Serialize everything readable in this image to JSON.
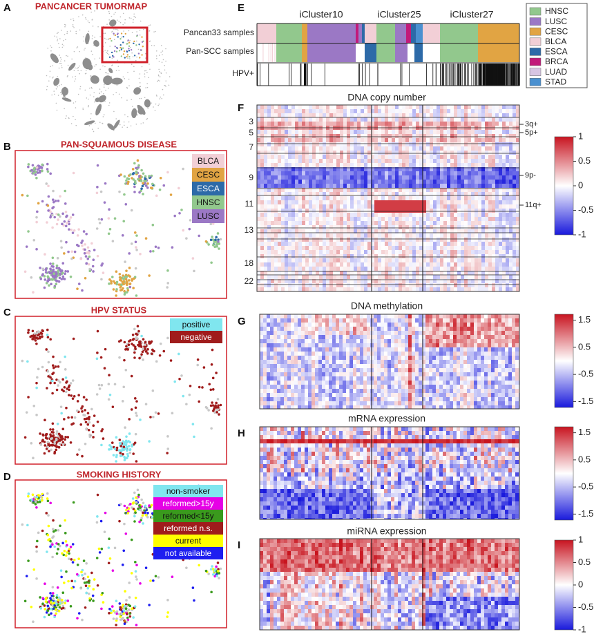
{
  "panels": {
    "a": {
      "label": "A",
      "title": "PANCANCER TUMORMAP"
    },
    "b": {
      "label": "B",
      "title": "PAN-SQUAMOUS DISEASE",
      "legend": [
        {
          "name": "BLCA",
          "color": "#f2cfd6"
        },
        {
          "name": "CESC",
          "color": "#e1a443"
        },
        {
          "name": "ESCA",
          "color": "#2d6aa8"
        },
        {
          "name": "HNSC",
          "color": "#92c88d"
        },
        {
          "name": "LUSC",
          "color": "#9b78c5"
        }
      ]
    },
    "c": {
      "label": "C",
      "title": "HPV STATUS",
      "legend": [
        {
          "name": "positive",
          "color": "#80e6ef"
        },
        {
          "name": "negative",
          "color": "#a01c1c"
        }
      ]
    },
    "d": {
      "label": "D",
      "title": "SMOKING HISTORY",
      "legend": [
        {
          "name": "non-smoker",
          "color": "#80e6ef"
        },
        {
          "name": "reformed>15y",
          "color": "#e600e6"
        },
        {
          "name": "reformed<15y",
          "color": "#3a9a1d"
        },
        {
          "name": "reformed n.s.",
          "color": "#a01c1c"
        },
        {
          "name": "current",
          "color": "#ffff00"
        },
        {
          "name": "not available",
          "color": "#1e1ef0"
        }
      ]
    },
    "e": {
      "label": "E",
      "clusters": [
        "iCluster10",
        "iCluster25",
        "iCluster27"
      ],
      "rows": [
        "Pancan33  samples",
        "Pan-SCC samples",
        "HPV+"
      ],
      "legend": [
        {
          "name": "HNSC",
          "color": "#92c88d"
        },
        {
          "name": "LUSC",
          "color": "#9b78c5"
        },
        {
          "name": "CESC",
          "color": "#e1a443"
        },
        {
          "name": "BLCA",
          "color": "#f2cfd6"
        },
        {
          "name": "ESCA",
          "color": "#2d6aa8"
        },
        {
          "name": "BRCA",
          "color": "#c21a7a"
        },
        {
          "name": "LUAD",
          "color": "#d8c5e3"
        },
        {
          "name": "STAD",
          "color": "#4a90d0"
        }
      ]
    },
    "f": {
      "label": "F",
      "title": "DNA copy number",
      "chromosomes": [
        "3",
        "5",
        "7",
        "9",
        "11",
        "13",
        "18",
        "22"
      ],
      "events": [
        "3q+",
        "5p+",
        "9p-",
        "11q+"
      ],
      "colorbar": [
        1,
        0.5,
        0,
        -0.5,
        -1
      ]
    },
    "g": {
      "label": "G",
      "title": "DNA methylation",
      "colorbar": [
        1.5,
        0.5,
        -0.5,
        -1.5
      ]
    },
    "h": {
      "label": "H",
      "title": "mRNA expression",
      "colorbar": [
        1.5,
        0.5,
        -0.5,
        -1.5
      ]
    },
    "i": {
      "label": "I",
      "title": "miRNA expression",
      "colorbar": [
        1,
        0.5,
        0,
        -0.5,
        -1
      ]
    }
  }
}
